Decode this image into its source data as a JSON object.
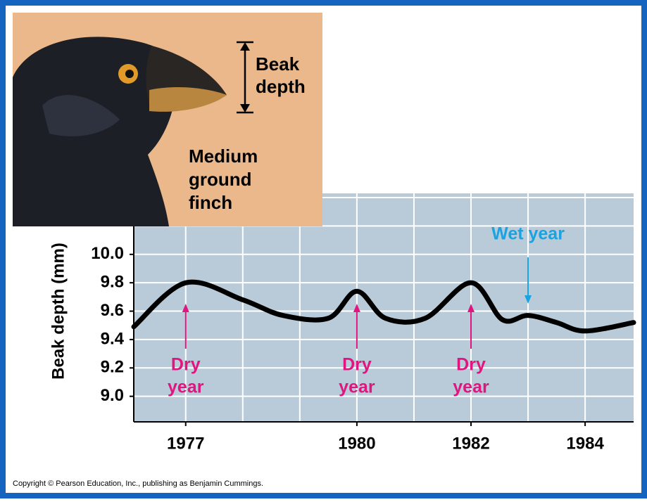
{
  "illustration": {
    "beak_label": [
      "Beak",
      "depth"
    ],
    "bird_label": [
      "Medium",
      "ground",
      "finch"
    ]
  },
  "chart_data": {
    "type": "line",
    "y_label": "Beak depth (mm)",
    "x": [
      1976.09,
      1977,
      1978,
      1978.7,
      1979.5,
      1980,
      1980.5,
      1981.2,
      1982,
      1982.55,
      1983,
      1983.5,
      1984,
      1984.85
    ],
    "values": [
      9.49,
      9.8,
      9.68,
      9.57,
      9.55,
      9.74,
      9.55,
      9.55,
      9.8,
      9.54,
      9.57,
      9.52,
      9.46,
      9.52
    ],
    "color": "#000000",
    "background": "#b9cbd8",
    "xlim": [
      1976.09,
      1984.85
    ],
    "ylim": [
      8.82,
      10.43
    ],
    "xticks": [
      1977,
      1980,
      1982,
      1984
    ],
    "yticks": [
      {
        "value": 9,
        "label": "9.0"
      },
      9.2,
      9.4,
      9.6,
      9.8,
      {
        "value": 10,
        "label": "10.0"
      }
    ],
    "xgrid": [
      1977,
      1978,
      1979,
      1980,
      1981,
      1982,
      1983,
      1984
    ],
    "ygrid": [
      9,
      9.2,
      9.4,
      9.6,
      9.8,
      10,
      10.2,
      10.4
    ],
    "annotations": [
      {
        "lines": [
          "Dry",
          "year"
        ],
        "x": 1977,
        "color": "#e0157f"
      },
      {
        "lines": [
          "Dry",
          "year"
        ],
        "x": 1980,
        "color": "#e0157f"
      },
      {
        "lines": [
          "Dry",
          "year"
        ],
        "x": 1982,
        "color": "#e0157f"
      },
      {
        "lines": [
          "Wet year"
        ],
        "x": 1983,
        "color": "#1aa3e0"
      }
    ]
  },
  "copyright": "Copyright © Pearson Education, Inc., publishing as Benjamin Cummings."
}
